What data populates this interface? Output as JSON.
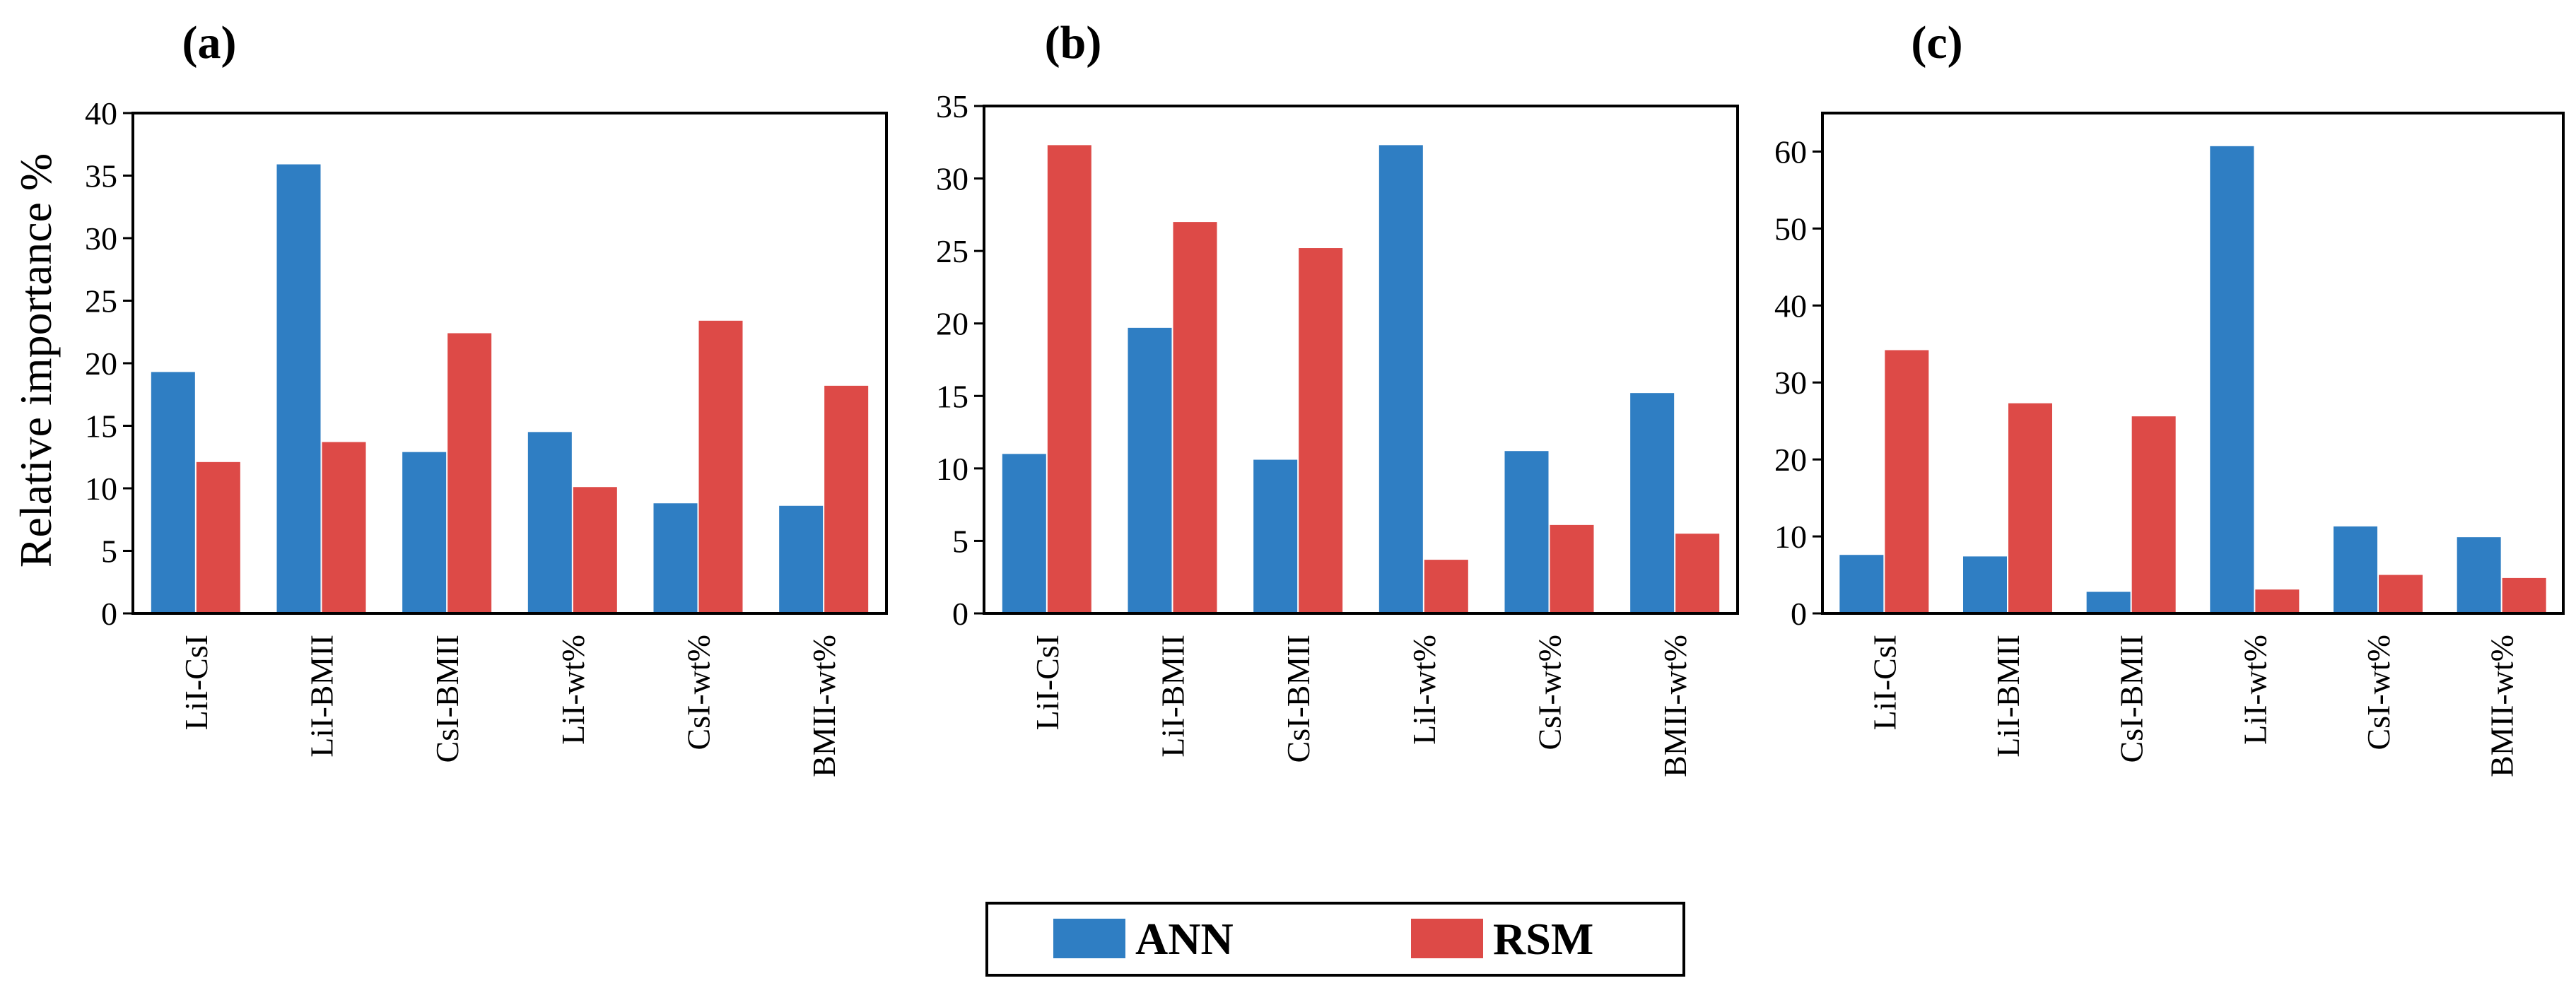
{
  "figure": {
    "ylabel": "Relative importance %",
    "legend": {
      "position": "bottom-center"
    }
  },
  "colors": {
    "ANN": "#2f7ec3",
    "RSM": "#dd4a47"
  },
  "chart_data": [
    {
      "type": "bar",
      "title": "(a)",
      "categories": [
        "LiI-CsI",
        "LiI-BMII",
        "CsI-BMII",
        "LiI-wt%",
        "CsI-wt%",
        "BMII-wt%"
      ],
      "series": [
        {
          "name": "ANN",
          "values": [
            19.3,
            35.9,
            12.9,
            14.5,
            8.8,
            8.6
          ]
        },
        {
          "name": "RSM",
          "values": [
            12.1,
            13.7,
            22.4,
            10.1,
            23.4,
            18.2
          ]
        }
      ],
      "xlabel": "",
      "ylabel": "Relative importance %",
      "ylim": [
        0,
        40
      ],
      "yticks": [
        0,
        5,
        10,
        15,
        20,
        25,
        30,
        35,
        40
      ]
    },
    {
      "type": "bar",
      "title": "(b)",
      "categories": [
        "LiI-CsI",
        "LiI-BMII",
        "CsI-BMII",
        "LiI-wt%",
        "CsI-wt%",
        "BMII-wt%"
      ],
      "series": [
        {
          "name": "ANN",
          "values": [
            11.0,
            19.7,
            10.6,
            32.3,
            11.2,
            15.2
          ]
        },
        {
          "name": "RSM",
          "values": [
            32.3,
            27.0,
            25.2,
            3.7,
            6.1,
            5.5
          ]
        }
      ],
      "xlabel": "",
      "ylabel": "",
      "ylim": [
        0,
        35
      ],
      "yticks": [
        0,
        5,
        10,
        15,
        20,
        25,
        30,
        35
      ]
    },
    {
      "type": "bar",
      "title": "(c)",
      "categories": [
        "LiI-CsI",
        "LiI-BMII",
        "CsI-BMII",
        "LiI-wt%",
        "CsI-wt%",
        "BMII-wt%"
      ],
      "series": [
        {
          "name": "ANN",
          "values": [
            7.6,
            7.4,
            2.8,
            60.7,
            11.3,
            9.9
          ]
        },
        {
          "name": "RSM",
          "values": [
            34.2,
            27.3,
            25.6,
            3.1,
            5.0,
            4.6
          ]
        }
      ],
      "xlabel": "",
      "ylabel": "",
      "ylim": [
        0,
        65
      ],
      "yticks": [
        0,
        10,
        20,
        30,
        40,
        50,
        60
      ]
    }
  ]
}
